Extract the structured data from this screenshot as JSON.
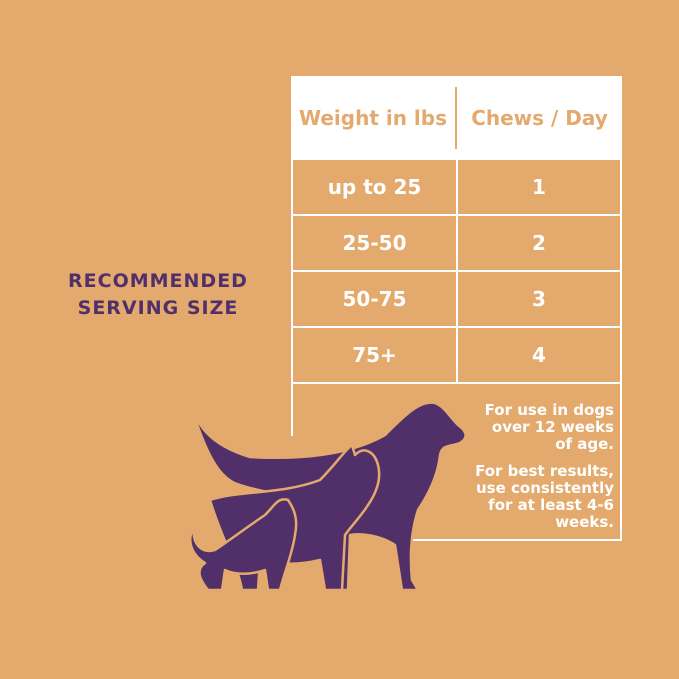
{
  "heading": [
    "RECOMMENDED",
    "SERVING SIZE"
  ],
  "table": {
    "headers": [
      "Weight in lbs",
      "Chews / Day"
    ],
    "rows": [
      {
        "weight": "up to 25",
        "chews": "1"
      },
      {
        "weight": "25-50",
        "chews": "2"
      },
      {
        "weight": "50-75",
        "chews": "3"
      },
      {
        "weight": "75+",
        "chews": "4"
      }
    ]
  },
  "notes": {
    "age": "For use in dogs over 12 weeks of age.",
    "results": "For best results, use consistently for at least 4-6 weeks."
  },
  "colors": {
    "background": "#E3A96D",
    "accent": "#51306A",
    "table_lines": "#FFFFFF"
  },
  "illustration": "dog-silhouettes-icon"
}
